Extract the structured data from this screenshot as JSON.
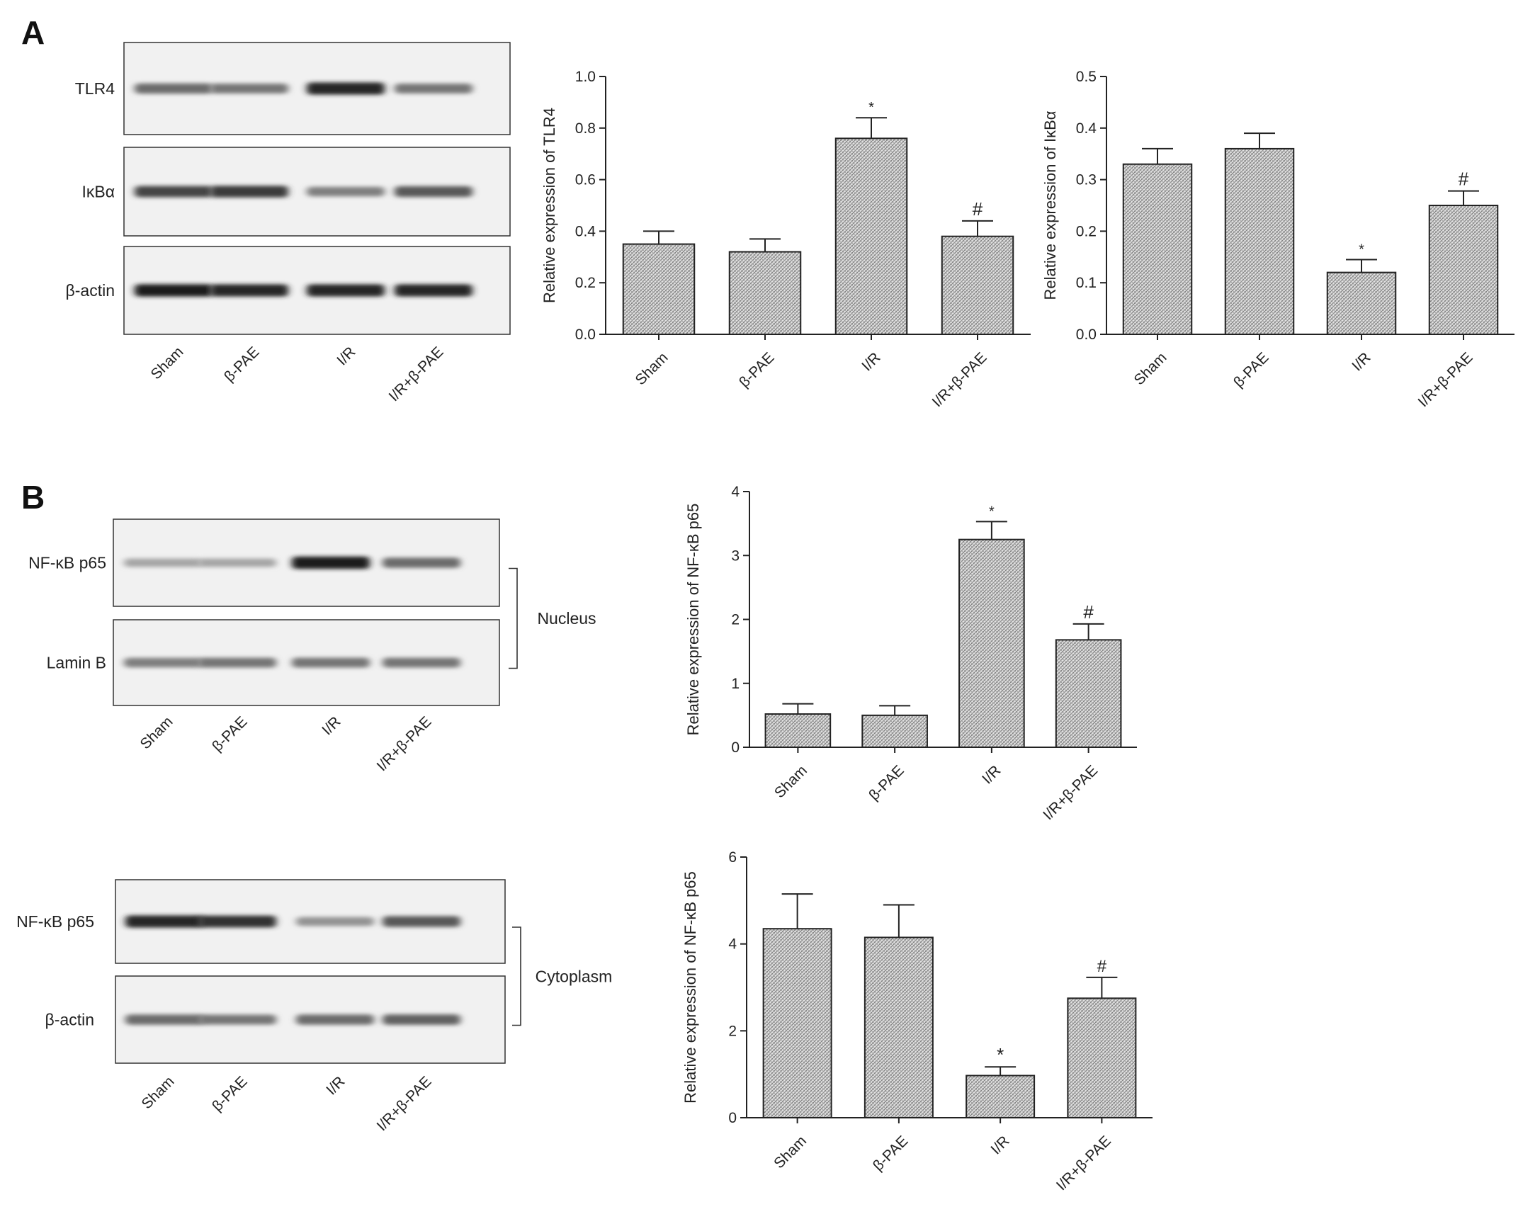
{
  "panels": {
    "a": {
      "letter": "A"
    },
    "b": {
      "letter": "B"
    }
  },
  "blots": [
    {
      "id": "A",
      "rows": [
        {
          "label": "TLR4",
          "intensity": [
            0.55,
            0.5,
            0.9,
            0.5
          ]
        },
        {
          "label": "IκBα",
          "intensity": [
            0.75,
            0.8,
            0.45,
            0.65
          ]
        },
        {
          "label": "β-actin",
          "intensity": [
            0.95,
            0.9,
            0.9,
            0.9
          ]
        }
      ],
      "lanes": [
        "Sham",
        "β-PAE",
        "I/R",
        "I/R+β-PAE"
      ]
    },
    {
      "id": "B-nucleus",
      "rows": [
        {
          "label": "NF-κB p65",
          "intensity": [
            0.25,
            0.25,
            0.95,
            0.55
          ]
        },
        {
          "label": "Lamin B",
          "intensity": [
            0.45,
            0.5,
            0.5,
            0.5
          ]
        }
      ],
      "bracket_label": "Nucleus",
      "lanes": [
        "Sham",
        "β-PAE",
        "I/R",
        "I/R+β-PAE"
      ]
    },
    {
      "id": "B-cytoplasm",
      "rows": [
        {
          "label": "NF-κB p65",
          "intensity": [
            0.9,
            0.85,
            0.35,
            0.65
          ]
        },
        {
          "label": "β-actin",
          "intensity": [
            0.55,
            0.5,
            0.55,
            0.6
          ]
        }
      ],
      "bracket_label": "Cytoplasm",
      "lanes": [
        "Sham",
        "β-PAE",
        "I/R",
        "I/R+β-PAE"
      ]
    }
  ],
  "chart_data": [
    {
      "type": "bar",
      "id": "tlr4",
      "categories": [
        "Sham",
        "β-PAE",
        "I/R",
        "I/R+β-PAE"
      ],
      "values": [
        0.35,
        0.32,
        0.76,
        0.38
      ],
      "errors": [
        0.05,
        0.05,
        0.08,
        0.06
      ],
      "annotations": [
        "",
        "",
        "*",
        "#"
      ],
      "ylabel": "Relative expression of TLR4",
      "ylim": [
        0,
        1.0
      ],
      "yticks": [
        0,
        0.2,
        0.4,
        0.6,
        0.8,
        1.0
      ],
      "ytick_labels": [
        "0.0",
        "0.2",
        "0.4",
        "0.6",
        "0.8",
        "1.0"
      ]
    },
    {
      "type": "bar",
      "id": "ikba",
      "categories": [
        "Sham",
        "β-PAE",
        "I/R",
        "I/R+β-PAE"
      ],
      "values": [
        0.33,
        0.36,
        0.12,
        0.25
      ],
      "errors": [
        0.03,
        0.03,
        0.025,
        0.028
      ],
      "annotations": [
        "",
        "",
        "*",
        "#"
      ],
      "ylabel": "Relative expression of IκBα",
      "ylim": [
        0,
        0.5
      ],
      "yticks": [
        0,
        0.1,
        0.2,
        0.3,
        0.4,
        0.5
      ],
      "ytick_labels": [
        "0.0",
        "0.1",
        "0.2",
        "0.3",
        "0.4",
        "0.5"
      ]
    },
    {
      "type": "bar",
      "id": "nfkb-nucleus",
      "categories": [
        "Sham",
        "β-PAE",
        "I/R",
        "I/R+β-PAE"
      ],
      "values": [
        0.52,
        0.5,
        3.25,
        1.68
      ],
      "errors": [
        0.16,
        0.15,
        0.28,
        0.25
      ],
      "annotations": [
        "",
        "",
        "*",
        "#"
      ],
      "ylabel": "Relative expression of NF-κB p65",
      "ylim": [
        0,
        4
      ],
      "yticks": [
        0,
        1,
        2,
        3,
        4
      ],
      "ytick_labels": [
        "0",
        "1",
        "2",
        "3",
        "4"
      ]
    },
    {
      "type": "bar",
      "id": "nfkb-cytoplasm",
      "categories": [
        "Sham",
        "β-PAE",
        "I/R",
        "I/R+β-PAE"
      ],
      "values": [
        4.35,
        4.15,
        0.97,
        2.75
      ],
      "errors": [
        0.8,
        0.75,
        0.2,
        0.48
      ],
      "annotations": [
        "",
        "",
        "*",
        "#"
      ],
      "ylabel": "Relative expression of NF-κB p65",
      "ylim": [
        0,
        6
      ],
      "yticks": [
        0,
        2,
        4,
        6
      ],
      "ytick_labels": [
        "0",
        "2",
        "4",
        "6"
      ]
    }
  ]
}
